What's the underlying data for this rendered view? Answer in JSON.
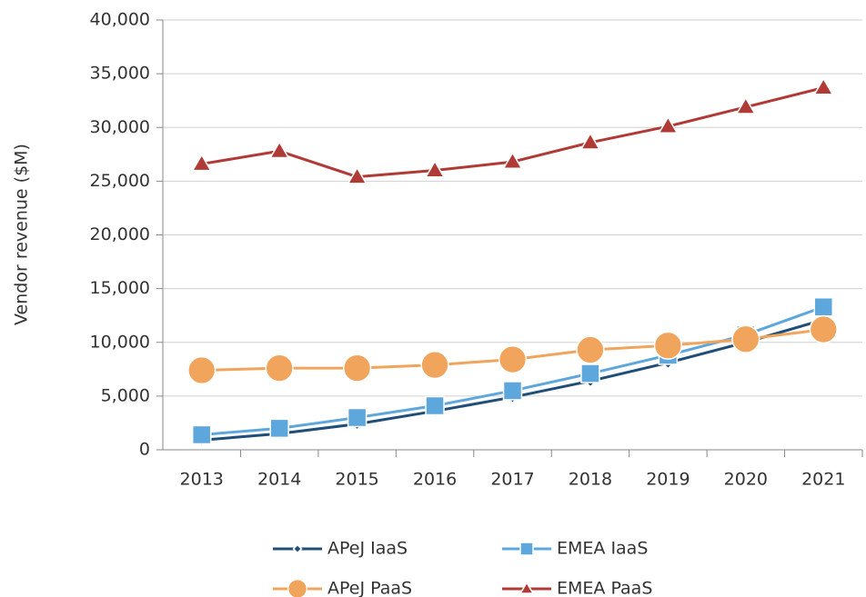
{
  "chart_data": {
    "type": "line",
    "y_label": "Vendor revenue ($M)",
    "categories": [
      "2013",
      "2014",
      "2015",
      "2016",
      "2017",
      "2018",
      "2019",
      "2020",
      "2021"
    ],
    "series": [
      {
        "name": "APeJ IaaS",
        "color": "#1f4e79",
        "marker": "diamond",
        "values": [
          900,
          1500,
          2400,
          3600,
          4900,
          6400,
          8100,
          10000,
          12100
        ]
      },
      {
        "name": "EMEA IaaS",
        "color": "#5ea7dc",
        "marker": "square",
        "values": [
          1400,
          2000,
          3000,
          4100,
          5500,
          7100,
          8800,
          10700,
          13300
        ]
      },
      {
        "name": "APeJ PaaS",
        "color": "#f0a45c",
        "marker": "circle",
        "values": [
          7400,
          7600,
          7600,
          7900,
          8400,
          9300,
          9700,
          10300,
          11200
        ]
      },
      {
        "name": "EMEA PaaS",
        "color": "#b03a36",
        "marker": "triangle",
        "values": [
          26600,
          27800,
          25400,
          26000,
          26800,
          28600,
          30100,
          31900,
          33700
        ]
      }
    ],
    "ylim": [
      0,
      40000
    ],
    "yticks": [
      0,
      {
        "value": 5000,
        "label": "5,000"
      },
      {
        "value": 10000,
        "label": "10,000"
      },
      {
        "value": 15000,
        "label": "15,000"
      },
      {
        "value": 20000,
        "label": "20,000"
      },
      {
        "value": 25000,
        "label": "25,000"
      },
      {
        "value": 30000,
        "label": "30,000"
      },
      {
        "value": 35000,
        "label": "35,000"
      },
      {
        "value": 40000,
        "label": "40,000"
      }
    ],
    "grid": true,
    "legend": "bottom"
  }
}
